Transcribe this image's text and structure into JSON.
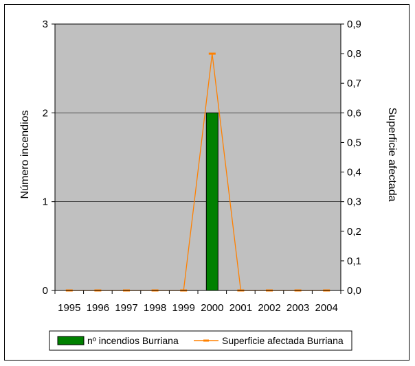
{
  "chart_data": {
    "type": "bar",
    "categories": [
      "1995",
      "1996",
      "1997",
      "1998",
      "1999",
      "2000",
      "2001",
      "2002",
      "2003",
      "2004"
    ],
    "series": [
      {
        "name": "nº incendios Burriana",
        "type": "bar",
        "axis": "left",
        "color": "#008000",
        "values": [
          0,
          0,
          0,
          0,
          0,
          2,
          0,
          0,
          0,
          0
        ]
      },
      {
        "name": "Superficie afectada Burriana",
        "type": "line",
        "axis": "right",
        "color": "#ff8000",
        "values": [
          0,
          0,
          0,
          0,
          0,
          0.8,
          0,
          0,
          0,
          0
        ]
      }
    ],
    "ylabel": "Número incendios",
    "y2label": "Superficie afectada",
    "ylim": [
      0,
      3
    ],
    "y2lim": [
      0,
      0.9
    ],
    "yticks": [
      "0",
      "1",
      "2",
      "3"
    ],
    "y2ticks": [
      "0,0",
      "0,1",
      "0,2",
      "0,3",
      "0,4",
      "0,5",
      "0,6",
      "0,7",
      "0,8",
      "0,9"
    ],
    "plot_background": "#c0c0c0",
    "grid": true,
    "legend_position": "bottom"
  }
}
